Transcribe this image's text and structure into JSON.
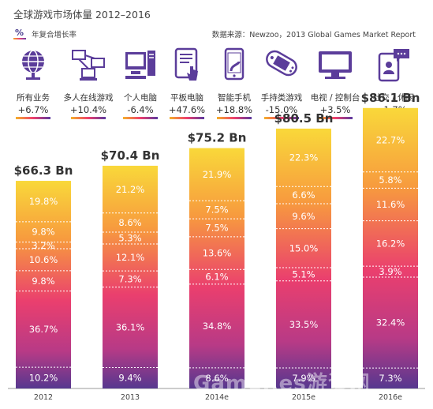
{
  "header": {
    "title": "全球游戏市场体量 2012–2016",
    "pct_symbol": "%",
    "legend_label": "年复合增长率",
    "source": "数据来源：Newzoo，2013 Global Games Market Report"
  },
  "categories": [
    {
      "label": "所有业务",
      "change": "+6.7%",
      "icon": "globe-icon"
    },
    {
      "label": "多人在线游戏",
      "change": "+10.4%",
      "icon": "network-computers-icon"
    },
    {
      "label": "个人电脑",
      "change": "-6.4%",
      "icon": "desktop-pc-icon"
    },
    {
      "label": "平板电脑",
      "change": "+47.6%",
      "icon": "tablet-touch-icon"
    },
    {
      "label": "智能手机",
      "change": "+18.8%",
      "icon": "smartphone-icon"
    },
    {
      "label": "手持类游戏",
      "change": "-15.0%",
      "icon": "handheld-console-icon"
    },
    {
      "label": "电视 / 控制台",
      "change": "+3.5%",
      "icon": "tv-monitor-icon"
    },
    {
      "label": "社交 / 休闲",
      "change": "-1.7%",
      "icon": "social-chat-icon"
    }
  ],
  "watermark": "GameRes游资网",
  "colors": {
    "top": "#f9d83a",
    "upper": "#f79b3e",
    "middle": "#ea3f6e",
    "lower": "#b83a86",
    "bottom": "#56388f"
  },
  "chart_data": {
    "type": "bar",
    "stacked": true,
    "unit": "%",
    "categories": [
      "2012",
      "2013",
      "2014e",
      "2015e",
      "2016e"
    ],
    "totals": [
      "$66.3 Bn",
      "$70.4 Bn",
      "$75.2 Bn",
      "$80.5 Bn",
      "$86.1 Bn"
    ],
    "total_values": [
      66.3,
      70.4,
      75.2,
      80.5,
      86.1
    ],
    "series_bottom_to_top": [
      {
        "values": [
          10.2,
          9.4,
          8.6,
          7.9,
          7.3
        ]
      },
      {
        "values": [
          36.7,
          36.1,
          34.8,
          33.5,
          32.4
        ]
      },
      {
        "values": [
          9.8,
          7.3,
          6.1,
          5.1,
          3.9
        ]
      },
      {
        "values": [
          10.6,
          12.1,
          13.6,
          15.0,
          16.2
        ]
      },
      {
        "values": [
          3.2,
          5.3,
          7.5,
          9.6,
          11.6
        ]
      },
      {
        "values": [
          9.8,
          8.6,
          7.5,
          6.6,
          5.8
        ]
      },
      {
        "values": [
          19.8,
          21.2,
          21.9,
          22.3,
          22.7
        ]
      }
    ]
  }
}
